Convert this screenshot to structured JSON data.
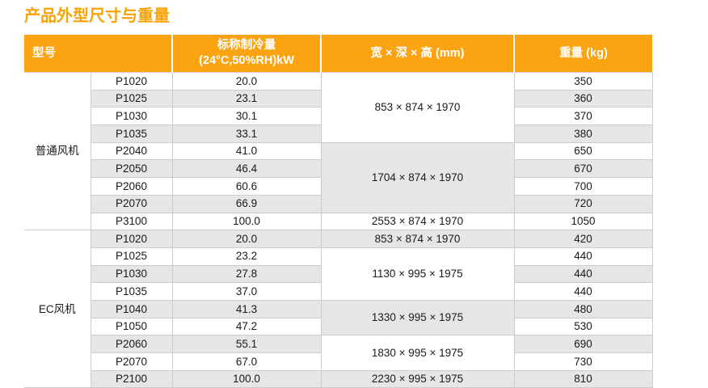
{
  "page": {
    "title": "产品外型尺寸与重量"
  },
  "colors": {
    "accent_orange": "#FBA311",
    "title_orange": "#F7A306",
    "row_alt_gray": "#E6E6E6",
    "grid_line": "#CCCCCC"
  },
  "table": {
    "header": {
      "model": "型号",
      "cooling_line1": "标称制冷量",
      "cooling_line2": "(24°C,50%RH)kW",
      "dimensions": "宽 × 深 × 高 (mm)",
      "weight": "重量 (kg)"
    },
    "groups": [
      {
        "label": "普通风机",
        "rows": [
          {
            "model": "P1020",
            "cooling": "20.0",
            "weight": "350"
          },
          {
            "model": "P1025",
            "cooling": "23.1",
            "weight": "360"
          },
          {
            "model": "P1030",
            "cooling": "30.1",
            "weight": "370"
          },
          {
            "model": "P1035",
            "cooling": "33.1",
            "weight": "380"
          },
          {
            "model": "P2040",
            "cooling": "41.0",
            "weight": "650"
          },
          {
            "model": "P2050",
            "cooling": "46.4",
            "weight": "670"
          },
          {
            "model": "P2060",
            "cooling": "60.6",
            "weight": "700"
          },
          {
            "model": "P2070",
            "cooling": "66.9",
            "weight": "720"
          },
          {
            "model": "P3100",
            "cooling": "100.0",
            "weight": "1050"
          }
        ],
        "dims": [
          {
            "value": "853 × 874 × 1970",
            "span": 4
          },
          {
            "value": "1704 × 874 × 1970",
            "span": 4
          },
          {
            "value": "2553 × 874 × 1970",
            "span": 1
          }
        ]
      },
      {
        "label": "EC风机",
        "rows": [
          {
            "model": "P1020",
            "cooling": "20.0",
            "weight": "420"
          },
          {
            "model": "P1025",
            "cooling": "23.2",
            "weight": "440"
          },
          {
            "model": "P1030",
            "cooling": "27.8",
            "weight": "440"
          },
          {
            "model": "P1035",
            "cooling": "37.0",
            "weight": "440"
          },
          {
            "model": "P1040",
            "cooling": "41.3",
            "weight": "480"
          },
          {
            "model": "P1050",
            "cooling": "47.2",
            "weight": "530"
          },
          {
            "model": "P2060",
            "cooling": "55.1",
            "weight": "690"
          },
          {
            "model": "P2070",
            "cooling": "67.0",
            "weight": "730"
          },
          {
            "model": "P2100",
            "cooling": "100.0",
            "weight": "810"
          }
        ],
        "dims": [
          {
            "value": "853 × 874 × 1970",
            "span": 1
          },
          {
            "value": "1130 × 995 × 1975",
            "span": 3
          },
          {
            "value": "1330 × 995 × 1975",
            "span": 2
          },
          {
            "value": "1830 × 995 × 1975",
            "span": 2
          },
          {
            "value": "2230 × 995 × 1975",
            "span": 1
          }
        ]
      }
    ]
  }
}
